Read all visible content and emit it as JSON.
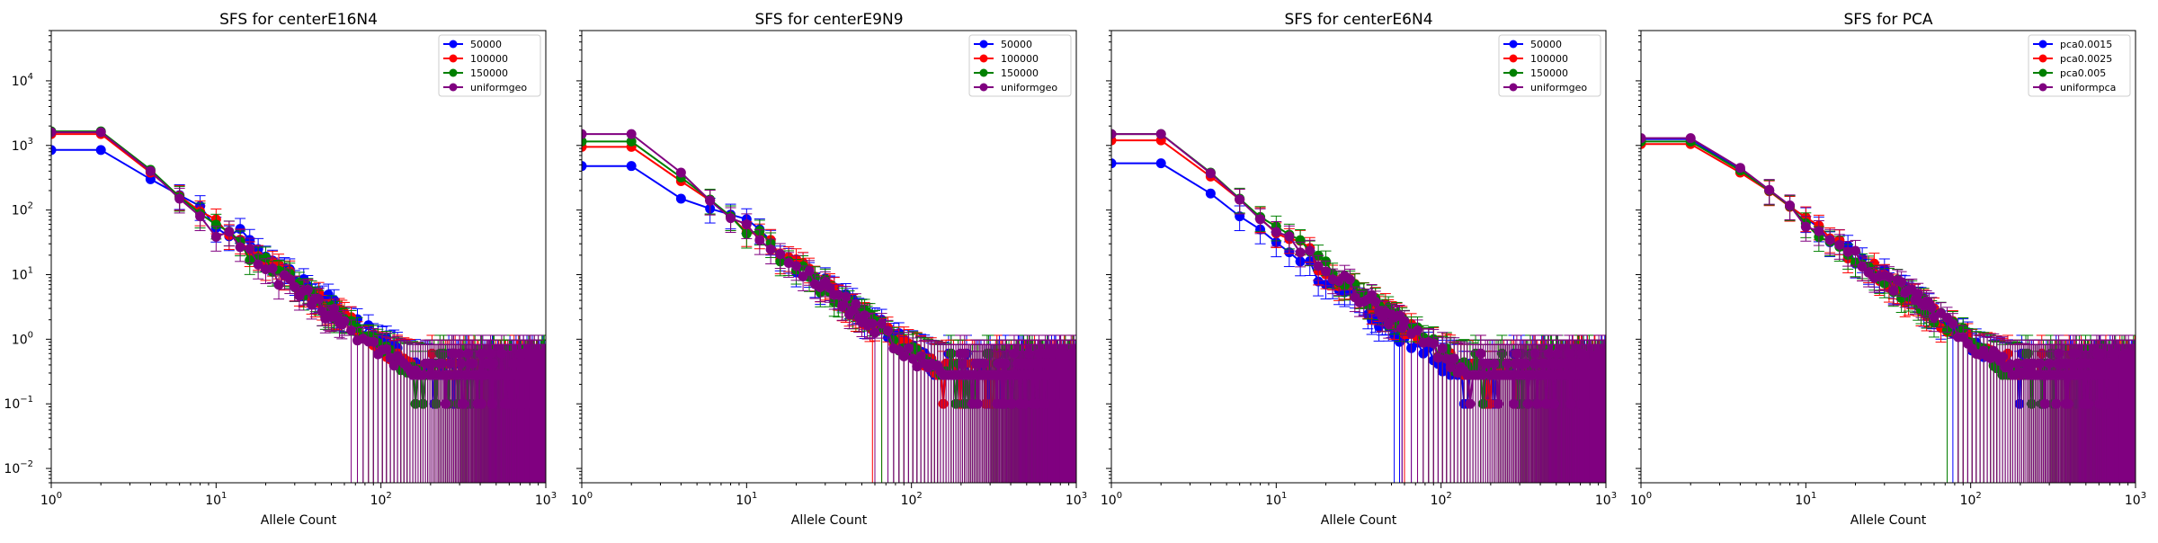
{
  "figure": {
    "xlabel": "Allele Count",
    "colors": [
      "#0000ff",
      "#ff0000",
      "#008000",
      "#800080"
    ],
    "yticks": [
      {
        "v": 0.01,
        "b": "10",
        "e": "−2"
      },
      {
        "v": 0.1,
        "b": "10",
        "e": "−1"
      },
      {
        "v": 1,
        "b": "10",
        "e": "0"
      },
      {
        "v": 10,
        "b": "10",
        "e": "1"
      },
      {
        "v": 100,
        "b": "10",
        "e": "2"
      },
      {
        "v": 1000,
        "b": "10",
        "e": "3"
      },
      {
        "v": 10000,
        "b": "10",
        "e": "4"
      }
    ],
    "xticks": [
      {
        "v": 1,
        "b": "10",
        "e": "0"
      },
      {
        "v": 10,
        "b": "10",
        "e": "1"
      },
      {
        "v": 100,
        "b": "10",
        "e": "2"
      },
      {
        "v": 1000,
        "b": "10",
        "e": "3"
      }
    ]
  },
  "chart_data": [
    {
      "type": "line",
      "title": "SFS for centerE16N4",
      "xlabel": "Allele Count",
      "xscale": "log",
      "yscale": "log",
      "xlim": [
        1,
        1000
      ],
      "ylim": [
        0.006,
        60000
      ],
      "legend_position": "top-right",
      "series": [
        {
          "name": "50000",
          "head": [
            [
              1,
              850
            ],
            [
              2,
              850
            ],
            [
              4,
              300
            ],
            [
              6,
              170
            ],
            [
              8,
              115
            ]
          ]
        },
        {
          "name": "100000",
          "head": [
            [
              1,
              1500
            ],
            [
              2,
              1500
            ],
            [
              4,
              380
            ],
            [
              6,
              165
            ],
            [
              8,
              95
            ]
          ]
        },
        {
          "name": "150000",
          "head": [
            [
              1,
              1650
            ],
            [
              2,
              1650
            ],
            [
              4,
              420
            ],
            [
              6,
              160
            ],
            [
              8,
              88
            ]
          ]
        },
        {
          "name": "uniformgeo",
          "head": [
            [
              1,
              1600
            ],
            [
              2,
              1600
            ],
            [
              4,
              400
            ],
            [
              6,
              150
            ],
            [
              8,
              80
            ]
          ]
        }
      ]
    },
    {
      "type": "line",
      "title": "SFS for centerE9N9",
      "xlabel": "Allele Count",
      "xscale": "log",
      "yscale": "log",
      "xlim": [
        1,
        1000
      ],
      "ylim": [
        0.006,
        60000
      ],
      "legend_position": "top-right",
      "series": [
        {
          "name": "50000",
          "head": [
            [
              1,
              480
            ],
            [
              2,
              480
            ],
            [
              4,
              150
            ],
            [
              6,
              105
            ],
            [
              8,
              85
            ]
          ]
        },
        {
          "name": "100000",
          "head": [
            [
              1,
              950
            ],
            [
              2,
              950
            ],
            [
              4,
              280
            ],
            [
              6,
              140
            ],
            [
              8,
              80
            ]
          ]
        },
        {
          "name": "150000",
          "head": [
            [
              1,
              1150
            ],
            [
              2,
              1150
            ],
            [
              4,
              320
            ],
            [
              6,
              145
            ],
            [
              8,
              80
            ]
          ]
        },
        {
          "name": "uniformgeo",
          "head": [
            [
              1,
              1500
            ],
            [
              2,
              1500
            ],
            [
              4,
              380
            ],
            [
              6,
              140
            ],
            [
              8,
              75
            ]
          ]
        }
      ]
    },
    {
      "type": "line",
      "title": "SFS for centerE6N4",
      "xlabel": "Allele Count",
      "xscale": "log",
      "yscale": "log",
      "xlim": [
        1,
        1000
      ],
      "ylim": [
        0.006,
        60000
      ],
      "legend_position": "top-right",
      "series": [
        {
          "name": "50000",
          "head": [
            [
              1,
              530
            ],
            [
              2,
              530
            ],
            [
              4,
              180
            ],
            [
              6,
              80
            ],
            [
              8,
              50
            ]
          ]
        },
        {
          "name": "100000",
          "head": [
            [
              1,
              1200
            ],
            [
              2,
              1200
            ],
            [
              4,
              330
            ],
            [
              6,
              145
            ],
            [
              8,
              75
            ]
          ]
        },
        {
          "name": "150000",
          "head": [
            [
              1,
              1500
            ],
            [
              2,
              1500
            ],
            [
              4,
              380
            ],
            [
              6,
              150
            ],
            [
              8,
              78
            ]
          ]
        },
        {
          "name": "uniformgeo",
          "head": [
            [
              1,
              1500
            ],
            [
              2,
              1500
            ],
            [
              4,
              370
            ],
            [
              6,
              145
            ],
            [
              8,
              72
            ]
          ]
        }
      ]
    },
    {
      "type": "line",
      "title": "SFS for PCA",
      "xlabel": "Allele Count",
      "xscale": "log",
      "yscale": "log",
      "xlim": [
        1,
        1000
      ],
      "ylim": [
        0.006,
        60000
      ],
      "legend_position": "top-right",
      "series": [
        {
          "name": "pca0.0015",
          "head": [
            [
              1,
              1250
            ],
            [
              2,
              1250
            ],
            [
              4,
              420
            ],
            [
              6,
              200
            ],
            [
              8,
              115
            ]
          ]
        },
        {
          "name": "pca0.0025",
          "head": [
            [
              1,
              1050
            ],
            [
              2,
              1050
            ],
            [
              4,
              380
            ],
            [
              6,
              195
            ],
            [
              8,
              112
            ]
          ]
        },
        {
          "name": "pca0.005",
          "head": [
            [
              1,
              1150
            ],
            [
              2,
              1150
            ],
            [
              4,
              410
            ],
            [
              6,
              200
            ],
            [
              8,
              115
            ]
          ]
        },
        {
          "name": "uniformpca",
          "head": [
            [
              1,
              1300
            ],
            [
              2,
              1300
            ],
            [
              4,
              450
            ],
            [
              6,
              205
            ],
            [
              8,
              118
            ]
          ]
        }
      ]
    }
  ]
}
